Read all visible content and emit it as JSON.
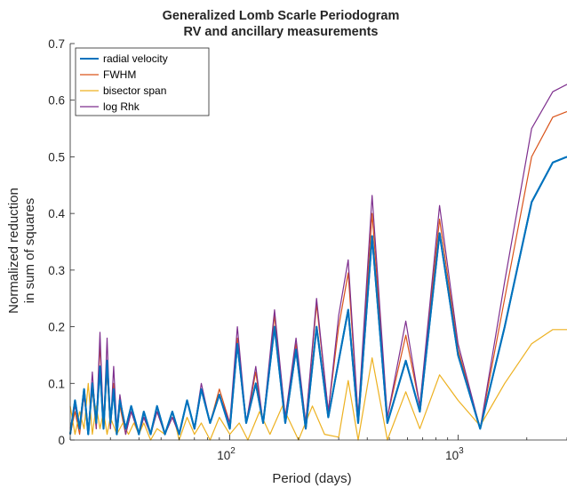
{
  "chart_data": {
    "type": "line",
    "title": [
      "Generalized Lomb Scarle Periodogram",
      "RV and ancillary measurements"
    ],
    "xlabel": "Period (days)",
    "ylabel": [
      "Normalized reduction",
      "in sum of squares"
    ],
    "xscale": "log",
    "xlim": [
      20,
      3000
    ],
    "ylim": [
      0,
      0.7
    ],
    "xticks": [
      {
        "value": 100,
        "base": "10",
        "exp": "2"
      },
      {
        "value": 1000,
        "base": "10",
        "exp": "3"
      }
    ],
    "yticks": [
      "0",
      "0.1",
      "0.2",
      "0.3",
      "0.4",
      "0.5",
      "0.6",
      "0.7"
    ],
    "grid": false,
    "legend_position": "top-left",
    "series": [
      {
        "name": "radial velocity",
        "color": "#0072BD",
        "points": [
          [
            20,
            0.01
          ],
          [
            21,
            0.07
          ],
          [
            22,
            0.02
          ],
          [
            23,
            0.09
          ],
          [
            24,
            0.01
          ],
          [
            25,
            0.1
          ],
          [
            26,
            0.03
          ],
          [
            27,
            0.13
          ],
          [
            28,
            0.02
          ],
          [
            29,
            0.14
          ],
          [
            30,
            0.03
          ],
          [
            31,
            0.09
          ],
          [
            32,
            0.01
          ],
          [
            33,
            0.07
          ],
          [
            35,
            0.02
          ],
          [
            37,
            0.06
          ],
          [
            40,
            0.01
          ],
          [
            42,
            0.05
          ],
          [
            45,
            0.01
          ],
          [
            48,
            0.06
          ],
          [
            52,
            0.01
          ],
          [
            56,
            0.05
          ],
          [
            60,
            0.01
          ],
          [
            65,
            0.07
          ],
          [
            70,
            0.02
          ],
          [
            75,
            0.09
          ],
          [
            82,
            0.03
          ],
          [
            90,
            0.08
          ],
          [
            100,
            0.02
          ],
          [
            108,
            0.17
          ],
          [
            118,
            0.03
          ],
          [
            130,
            0.1
          ],
          [
            140,
            0.03
          ],
          [
            157,
            0.2
          ],
          [
            175,
            0.03
          ],
          [
            195,
            0.16
          ],
          [
            215,
            0.02
          ],
          [
            240,
            0.2
          ],
          [
            270,
            0.04
          ],
          [
            300,
            0.14
          ],
          [
            330,
            0.23
          ],
          [
            365,
            0.03
          ],
          [
            420,
            0.36
          ],
          [
            490,
            0.03
          ],
          [
            590,
            0.14
          ],
          [
            680,
            0.05
          ],
          [
            830,
            0.365
          ],
          [
            1000,
            0.15
          ],
          [
            1250,
            0.02
          ],
          [
            1600,
            0.2
          ],
          [
            2100,
            0.42
          ],
          [
            2600,
            0.49
          ],
          [
            3000,
            0.5
          ]
        ]
      },
      {
        "name": "FWHM",
        "color": "#D95319",
        "points": [
          [
            20,
            0.01
          ],
          [
            21,
            0.05
          ],
          [
            22,
            0.01
          ],
          [
            23,
            0.08
          ],
          [
            24,
            0.02
          ],
          [
            25,
            0.09
          ],
          [
            26,
            0.02
          ],
          [
            27,
            0.17
          ],
          [
            28,
            0.03
          ],
          [
            29,
            0.12
          ],
          [
            30,
            0.02
          ],
          [
            31,
            0.1
          ],
          [
            32,
            0.02
          ],
          [
            33,
            0.06
          ],
          [
            35,
            0.01
          ],
          [
            37,
            0.05
          ],
          [
            40,
            0.01
          ],
          [
            42,
            0.04
          ],
          [
            45,
            0.01
          ],
          [
            48,
            0.05
          ],
          [
            52,
            0.01
          ],
          [
            56,
            0.04
          ],
          [
            60,
            0.01
          ],
          [
            65,
            0.07
          ],
          [
            70,
            0.02
          ],
          [
            75,
            0.09
          ],
          [
            82,
            0.03
          ],
          [
            90,
            0.09
          ],
          [
            100,
            0.03
          ],
          [
            108,
            0.18
          ],
          [
            118,
            0.03
          ],
          [
            130,
            0.12
          ],
          [
            140,
            0.03
          ],
          [
            157,
            0.22
          ],
          [
            175,
            0.04
          ],
          [
            195,
            0.17
          ],
          [
            215,
            0.03
          ],
          [
            240,
            0.24
          ],
          [
            270,
            0.05
          ],
          [
            300,
            0.2
          ],
          [
            330,
            0.295
          ],
          [
            365,
            0.04
          ],
          [
            420,
            0.4
          ],
          [
            490,
            0.04
          ],
          [
            590,
            0.185
          ],
          [
            680,
            0.06
          ],
          [
            830,
            0.39
          ],
          [
            1000,
            0.16
          ],
          [
            1250,
            0.02
          ],
          [
            1600,
            0.25
          ],
          [
            2100,
            0.5
          ],
          [
            2600,
            0.57
          ],
          [
            3000,
            0.58
          ]
        ]
      },
      {
        "name": "bisector span",
        "color": "#EDB120",
        "points": [
          [
            20,
            0.06
          ],
          [
            21,
            0.01
          ],
          [
            22,
            0.05
          ],
          [
            23,
            0.02
          ],
          [
            24,
            0.1
          ],
          [
            25,
            0.01
          ],
          [
            26,
            0.06
          ],
          [
            27,
            0.02
          ],
          [
            28,
            0.05
          ],
          [
            29,
            0.01
          ],
          [
            30,
            0.04
          ],
          [
            32,
            0.01
          ],
          [
            34,
            0.03
          ],
          [
            36,
            0.01
          ],
          [
            38,
            0.03
          ],
          [
            40,
            0.01
          ],
          [
            42,
            0.03
          ],
          [
            45,
            0.0
          ],
          [
            48,
            0.02
          ],
          [
            52,
            0.01
          ],
          [
            56,
            0.05
          ],
          [
            60,
            0.0
          ],
          [
            65,
            0.04
          ],
          [
            70,
            0.01
          ],
          [
            75,
            0.03
          ],
          [
            82,
            0.0
          ],
          [
            90,
            0.04
          ],
          [
            100,
            0.01
          ],
          [
            110,
            0.03
          ],
          [
            120,
            0.0
          ],
          [
            135,
            0.05
          ],
          [
            150,
            0.01
          ],
          [
            170,
            0.06
          ],
          [
            200,
            0.0
          ],
          [
            230,
            0.06
          ],
          [
            260,
            0.01
          ],
          [
            300,
            0.005
          ],
          [
            330,
            0.105
          ],
          [
            365,
            0.0
          ],
          [
            420,
            0.145
          ],
          [
            490,
            0.0
          ],
          [
            590,
            0.085
          ],
          [
            680,
            0.02
          ],
          [
            830,
            0.115
          ],
          [
            1000,
            0.07
          ],
          [
            1250,
            0.025
          ],
          [
            1600,
            0.1
          ],
          [
            2100,
            0.17
          ],
          [
            2600,
            0.195
          ],
          [
            3000,
            0.195
          ]
        ]
      },
      {
        "name": "log Rhk",
        "color": "#7E2F8E",
        "points": [
          [
            20,
            0.02
          ],
          [
            21,
            0.06
          ],
          [
            22,
            0.02
          ],
          [
            23,
            0.08
          ],
          [
            24,
            0.01
          ],
          [
            25,
            0.12
          ],
          [
            26,
            0.02
          ],
          [
            27,
            0.19
          ],
          [
            28,
            0.02
          ],
          [
            29,
            0.18
          ],
          [
            30,
            0.02
          ],
          [
            31,
            0.13
          ],
          [
            32,
            0.02
          ],
          [
            33,
            0.08
          ],
          [
            35,
            0.01
          ],
          [
            37,
            0.05
          ],
          [
            40,
            0.01
          ],
          [
            42,
            0.04
          ],
          [
            45,
            0.01
          ],
          [
            48,
            0.05
          ],
          [
            52,
            0.01
          ],
          [
            56,
            0.04
          ],
          [
            60,
            0.01
          ],
          [
            65,
            0.07
          ],
          [
            70,
            0.02
          ],
          [
            75,
            0.1
          ],
          [
            82,
            0.03
          ],
          [
            90,
            0.08
          ],
          [
            100,
            0.03
          ],
          [
            108,
            0.2
          ],
          [
            118,
            0.03
          ],
          [
            130,
            0.13
          ],
          [
            140,
            0.03
          ],
          [
            157,
            0.23
          ],
          [
            175,
            0.04
          ],
          [
            195,
            0.18
          ],
          [
            215,
            0.03
          ],
          [
            240,
            0.25
          ],
          [
            270,
            0.05
          ],
          [
            300,
            0.22
          ],
          [
            330,
            0.318
          ],
          [
            365,
            0.04
          ],
          [
            420,
            0.432
          ],
          [
            490,
            0.04
          ],
          [
            590,
            0.21
          ],
          [
            680,
            0.06
          ],
          [
            830,
            0.414
          ],
          [
            1000,
            0.17
          ],
          [
            1250,
            0.02
          ],
          [
            1600,
            0.28
          ],
          [
            2100,
            0.55
          ],
          [
            2600,
            0.615
          ],
          [
            3000,
            0.628
          ]
        ]
      }
    ]
  }
}
